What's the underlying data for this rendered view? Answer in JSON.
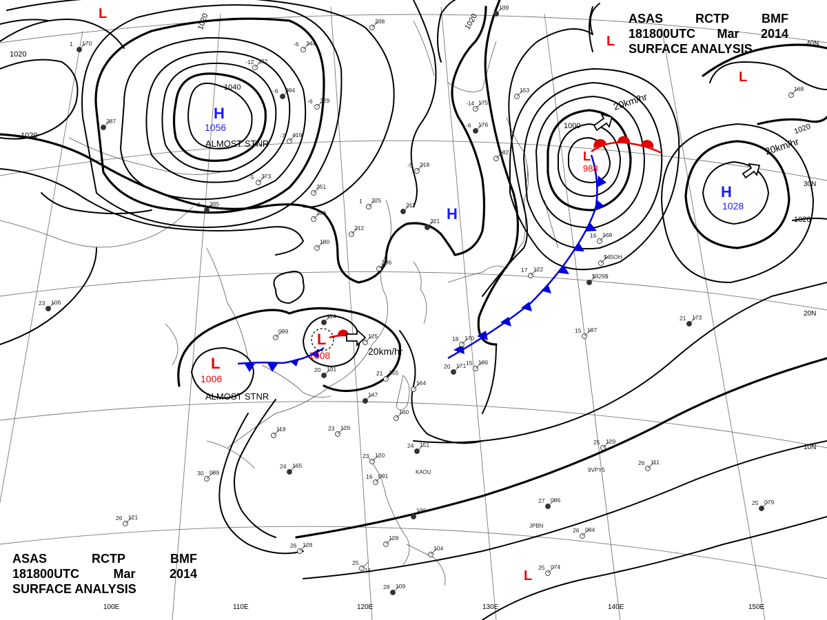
{
  "header": {
    "agency": "ASAS",
    "station": "RCTP",
    "office": "BMF",
    "time": "181800UTC",
    "month": "Mar",
    "year": "2014",
    "product": "SURFACE ANALYSIS"
  },
  "pressure_systems": [
    {
      "id": "high-mongolia",
      "type": "H",
      "value": "1056",
      "note": "ALMOST STNR"
    },
    {
      "id": "low-china",
      "type": "L",
      "value": "1006",
      "note": "ALMOST STNR"
    },
    {
      "id": "low-yangtze",
      "type": "L",
      "value": "1008",
      "motion": "20km/hr"
    },
    {
      "id": "low-japan",
      "type": "L",
      "value": "988",
      "motion": "20km/hr"
    },
    {
      "id": "high-pacific",
      "type": "H",
      "value": "1028",
      "motion": "20km/hr"
    },
    {
      "id": "high-yellowsea",
      "type": "H"
    },
    {
      "id": "low-nw",
      "type": "L"
    },
    {
      "id": "low-ne",
      "type": "L"
    },
    {
      "id": "low-ne2",
      "type": "L"
    },
    {
      "id": "low-south",
      "type": "L"
    }
  ],
  "isobar_labels": [
    "1020",
    "1020",
    "1020",
    "1040",
    "1000",
    "1020",
    "1020",
    "1020"
  ],
  "grid": {
    "longitudes": [
      "100E",
      "110E",
      "120E",
      "130E",
      "140E",
      "150E"
    ],
    "latitudes": [
      "40N",
      "30N",
      "20N",
      "10N"
    ]
  },
  "station_ids": [
    "KAOU",
    "JPBN",
    "9VPY5"
  ],
  "station_plots": [
    {
      "t": "1",
      "p": "170"
    },
    {
      "t": "-6",
      "p": "344"
    },
    {
      "t": "-12",
      "p": "332"
    },
    {
      "t": "-6",
      "p": "394"
    },
    {
      "t": "-7",
      "p": "419"
    },
    {
      "t": "-6",
      "p": "329"
    },
    {
      "t": "",
      "p": "287"
    },
    {
      "t": "-5",
      "p": "373"
    },
    {
      "t": "",
      "p": "251"
    },
    {
      "t": "2",
      "p": "235"
    },
    {
      "t": "",
      "p": "166"
    },
    {
      "t": "1",
      "p": "225"
    },
    {
      "t": "",
      "p": "211"
    },
    {
      "t": "-5",
      "p": "218"
    },
    {
      "t": "-14",
      "p": "175"
    },
    {
      "t": "-6",
      "p": "176"
    },
    {
      "t": "",
      "p": "212"
    },
    {
      "t": "",
      "p": "180"
    },
    {
      "t": "",
      "p": "221"
    },
    {
      "t": "",
      "p": "206"
    },
    {
      "t": "",
      "p": "238"
    },
    {
      "t": "",
      "p": "139"
    },
    {
      "t": "",
      "p": "153"
    },
    {
      "t": "",
      "p": "182"
    },
    {
      "t": "",
      "p": "114"
    },
    {
      "t": "",
      "p": "099"
    },
    {
      "t": "",
      "p": "125"
    },
    {
      "t": "20",
      "p": "131"
    },
    {
      "t": "21",
      "p": "155"
    },
    {
      "t": "",
      "p": "164"
    },
    {
      "t": "",
      "p": "147"
    },
    {
      "t": "",
      "p": "160"
    },
    {
      "t": "23",
      "p": "126"
    },
    {
      "t": "24",
      "p": "151"
    },
    {
      "t": "23",
      "p": "120"
    },
    {
      "t": "16",
      "p": "091"
    },
    {
      "t": "",
      "p": "136"
    },
    {
      "t": "",
      "p": "128"
    },
    {
      "t": "",
      "p": "104"
    },
    {
      "t": "28",
      "p": "109"
    },
    {
      "t": "26",
      "p": "128"
    },
    {
      "t": "25",
      "p": "",
      "v": "15"
    },
    {
      "t": "24",
      "p": "165"
    },
    {
      "t": "30",
      "p": "089"
    },
    {
      "t": "26",
      "p": "121"
    },
    {
      "t": "23",
      "p": "106"
    },
    {
      "t": "",
      "p": "118"
    },
    {
      "t": "18",
      "p": "170"
    },
    {
      "t": "20",
      "p": "171"
    },
    {
      "t": "15",
      "p": "186"
    },
    {
      "t": "15",
      "p": "187"
    },
    {
      "t": "21",
      "p": "173"
    },
    {
      "t": "25",
      "p": "129"
    },
    {
      "t": "26",
      "p": "111"
    },
    {
      "t": "27",
      "p": "086"
    },
    {
      "t": "26",
      "p": "084"
    },
    {
      "t": "25",
      "p": "074"
    },
    {
      "t": "25",
      "p": "079"
    },
    {
      "t": "17",
      "p": "122"
    },
    {
      "t": "16",
      "p": "168"
    },
    {
      "t": "",
      "p": "$329$"
    },
    {
      "t": "",
      "p": "$45OH"
    },
    {
      "t": "",
      "p": "168"
    }
  ]
}
